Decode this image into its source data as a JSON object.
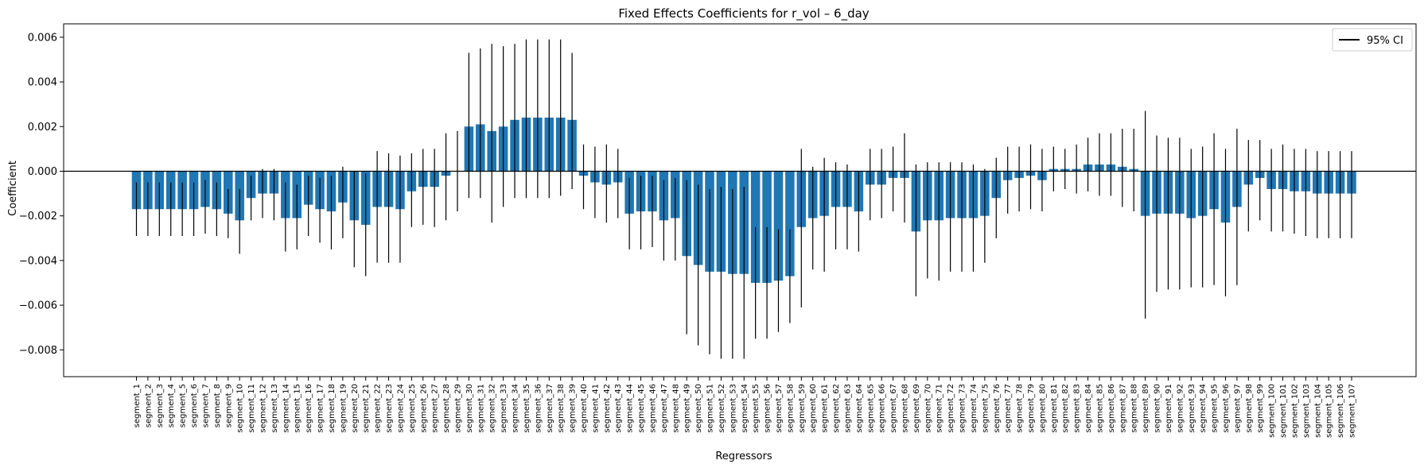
{
  "chart_data": {
    "type": "bar",
    "title": "Fixed Effects Coefficients for r_vol – 6_day",
    "xlabel": "Regressors",
    "ylabel": "Coefficient",
    "ylim": [
      -0.0092,
      0.0066
    ],
    "yticks": [
      -0.008,
      -0.006,
      -0.004,
      -0.002,
      0.0,
      0.002,
      0.004,
      0.006
    ],
    "ytick_labels": [
      "−0.008",
      "−0.006",
      "−0.004",
      "−0.002",
      "0.000",
      "0.002",
      "0.004",
      "0.006"
    ],
    "legend": {
      "position": "top-right",
      "label": "95% CI"
    },
    "bar_color": "#1f77b4",
    "error_color": "#000000",
    "categories": [
      "segment_1",
      "segment_2",
      "segment_3",
      "segment_4",
      "segment_5",
      "segment_6",
      "segment_7",
      "segment_8",
      "segment_9",
      "segment_10",
      "segment_11",
      "segment_12",
      "segment_13",
      "segment_14",
      "segment_15",
      "segment_16",
      "segment_17",
      "segment_18",
      "segment_19",
      "segment_20",
      "segment_21",
      "segment_22",
      "segment_23",
      "segment_24",
      "segment_25",
      "segment_26",
      "segment_27",
      "segment_28",
      "segment_29",
      "segment_30",
      "segment_31",
      "segment_32",
      "segment_33",
      "segment_34",
      "segment_35",
      "segment_36",
      "segment_37",
      "segment_38",
      "segment_39",
      "segment_40",
      "segment_41",
      "segment_42",
      "segment_43",
      "segment_44",
      "segment_45",
      "segment_46",
      "segment_47",
      "segment_48",
      "segment_49",
      "segment_50",
      "segment_51",
      "segment_52",
      "segment_53",
      "segment_54",
      "segment_55",
      "segment_56",
      "segment_57",
      "segment_58",
      "segment_59",
      "segment_60",
      "segment_61",
      "segment_62",
      "segment_63",
      "segment_64",
      "segment_65",
      "segment_66",
      "segment_67",
      "segment_68",
      "segment_69",
      "segment_70",
      "segment_71",
      "segment_72",
      "segment_73",
      "segment_74",
      "segment_75",
      "segment_76",
      "segment_77",
      "segment_78",
      "segment_79",
      "segment_80",
      "segment_81",
      "segment_82",
      "segment_83",
      "segment_84",
      "segment_85",
      "segment_86",
      "segment_87",
      "segment_88",
      "segment_89",
      "segment_90",
      "segment_91",
      "segment_92",
      "segment_93",
      "segment_94",
      "segment_95",
      "segment_96",
      "segment_97",
      "segment_98",
      "segment_99",
      "segment_100",
      "segment_101",
      "segment_102",
      "segment_103",
      "segment_104",
      "segment_105",
      "segment_106",
      "segment_107"
    ],
    "values": [
      -0.0017,
      -0.0017,
      -0.0017,
      -0.0017,
      -0.0017,
      -0.0017,
      -0.0016,
      -0.0017,
      -0.0019,
      -0.0022,
      -0.0012,
      -0.001,
      -0.001,
      -0.0021,
      -0.0021,
      -0.0015,
      -0.0017,
      -0.0018,
      -0.0014,
      -0.0022,
      -0.0024,
      -0.0016,
      -0.0016,
      -0.0017,
      -0.0009,
      -0.0007,
      -0.0007,
      -0.0002,
      0.0,
      0.002,
      0.0021,
      0.0018,
      0.002,
      0.0023,
      0.0024,
      0.0024,
      0.0024,
      0.0024,
      0.0023,
      -0.0002,
      -0.0005,
      -0.0006,
      -0.0005,
      -0.0019,
      -0.0018,
      -0.0018,
      -0.0022,
      -0.0021,
      -0.0038,
      -0.0042,
      -0.0045,
      -0.0045,
      -0.0046,
      -0.0046,
      -0.005,
      -0.005,
      -0.0049,
      -0.0047,
      -0.0025,
      -0.0021,
      -0.002,
      -0.0016,
      -0.0016,
      -0.0018,
      -0.0006,
      -0.0006,
      -0.0003,
      -0.0003,
      -0.0027,
      -0.0022,
      -0.0022,
      -0.0021,
      -0.0021,
      -0.0021,
      -0.002,
      -0.0012,
      -0.0004,
      -0.0003,
      -0.0002,
      -0.0004,
      0.0001,
      0.0001,
      0.0001,
      0.0003,
      0.0003,
      0.0003,
      0.0002,
      0.0001,
      -0.002,
      -0.0019,
      -0.0019,
      -0.0019,
      -0.0021,
      -0.002,
      -0.0017,
      -0.0023,
      -0.0016,
      -0.0006,
      -0.0003,
      -0.0008,
      -0.0008,
      -0.0009,
      -0.0009,
      -0.001,
      -0.001,
      -0.001,
      -0.001
    ],
    "ci_low": [
      -0.0029,
      -0.0029,
      -0.0029,
      -0.0029,
      -0.0029,
      -0.0029,
      -0.0028,
      -0.0029,
      -0.003,
      -0.0037,
      -0.0022,
      -0.0021,
      -0.0022,
      -0.0036,
      -0.0035,
      -0.0029,
      -0.0032,
      -0.0035,
      -0.003,
      -0.0043,
      -0.0047,
      -0.0041,
      -0.0041,
      -0.0041,
      -0.0025,
      -0.0024,
      -0.0025,
      -0.0022,
      -0.0018,
      -0.0012,
      -0.0012,
      -0.0023,
      -0.0016,
      -0.0012,
      -0.0012,
      -0.0012,
      -0.0012,
      -0.0011,
      -0.0008,
      -0.0017,
      -0.0021,
      -0.0023,
      -0.0021,
      -0.0035,
      -0.0035,
      -0.0034,
      -0.004,
      -0.004,
      -0.0073,
      -0.0078,
      -0.0082,
      -0.0084,
      -0.0084,
      -0.0084,
      -0.0075,
      -0.0075,
      -0.0072,
      -0.0068,
      -0.0061,
      -0.0044,
      -0.0045,
      -0.0035,
      -0.0035,
      -0.0036,
      -0.0022,
      -0.0021,
      -0.0018,
      -0.0023,
      -0.0056,
      -0.0048,
      -0.0049,
      -0.0045,
      -0.0045,
      -0.0045,
      -0.0041,
      -0.003,
      -0.0019,
      -0.0018,
      -0.0017,
      -0.0018,
      -0.0009,
      -0.0008,
      -0.001,
      -0.0009,
      -0.0011,
      -0.0011,
      -0.0016,
      -0.0018,
      -0.0066,
      -0.0054,
      -0.0053,
      -0.0053,
      -0.0052,
      -0.0052,
      -0.0051,
      -0.0056,
      -0.0051,
      -0.0027,
      -0.0022,
      -0.0027,
      -0.0027,
      -0.0028,
      -0.0029,
      -0.003,
      -0.003,
      -0.003,
      -0.003
    ],
    "ci_high": [
      -0.0005,
      -0.0005,
      -0.0005,
      -0.0005,
      -0.0005,
      -0.0005,
      -0.0004,
      -0.0005,
      -0.0008,
      -0.0008,
      -0.0002,
      0.0001,
      0.0001,
      -0.0005,
      -0.0006,
      -0.0002,
      -0.0003,
      -0.0002,
      0.0002,
      0.0,
      -0.0001,
      0.0009,
      0.0008,
      0.0007,
      0.0008,
      0.001,
      0.001,
      0.0017,
      0.0018,
      0.0053,
      0.0055,
      0.0057,
      0.0056,
      0.0057,
      0.0059,
      0.0059,
      0.0059,
      0.0059,
      0.0053,
      0.0012,
      0.0011,
      0.0012,
      0.001,
      -0.0003,
      -0.0002,
      -0.0002,
      -0.0004,
      -0.0003,
      -0.0004,
      -0.0006,
      -0.0008,
      -0.0007,
      -0.0008,
      -0.0007,
      -0.0025,
      -0.0025,
      -0.0026,
      -0.0026,
      0.001,
      0.0002,
      0.0006,
      0.0004,
      0.0003,
      0.0,
      0.001,
      0.001,
      0.0011,
      0.0017,
      0.0003,
      0.0004,
      0.0004,
      0.0004,
      0.0004,
      0.0003,
      0.0001,
      0.0006,
      0.0011,
      0.0011,
      0.0012,
      0.001,
      0.0011,
      0.001,
      0.0012,
      0.0015,
      0.0017,
      0.0017,
      0.0019,
      0.0019,
      0.0027,
      0.0016,
      0.0015,
      0.0015,
      0.001,
      0.0011,
      0.0017,
      0.001,
      0.0019,
      0.0014,
      0.0014,
      0.001,
      0.0012,
      0.001,
      0.001,
      0.0009,
      0.0009,
      0.0009,
      0.0009
    ]
  }
}
